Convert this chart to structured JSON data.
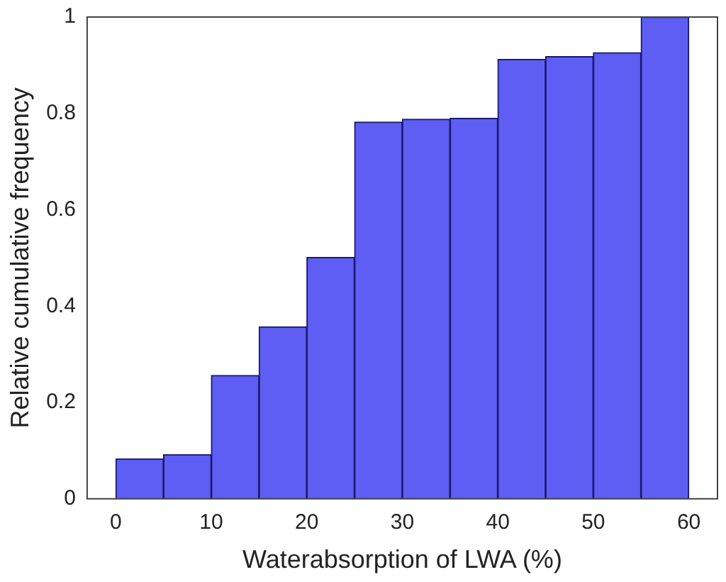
{
  "chart_data": {
    "type": "histogram",
    "xlabel": "Waterabsorption of LWA (%)",
    "ylabel": "Relative cumulative frequency",
    "bins": [
      0,
      5,
      10,
      15,
      20,
      25,
      30,
      35,
      40,
      45,
      50,
      55,
      60
    ],
    "values": [
      0.083,
      0.092,
      0.256,
      0.357,
      0.501,
      0.782,
      0.788,
      0.79,
      0.912,
      0.918,
      0.926,
      1.0
    ],
    "color": "#5e5ef5",
    "xlim": [
      -3,
      63
    ],
    "xticks": [
      0,
      10,
      20,
      30,
      40,
      50,
      60
    ],
    "ylim": [
      0,
      1
    ],
    "yticks": [
      0,
      0.2,
      0.4,
      0.6,
      0.8,
      1
    ]
  }
}
